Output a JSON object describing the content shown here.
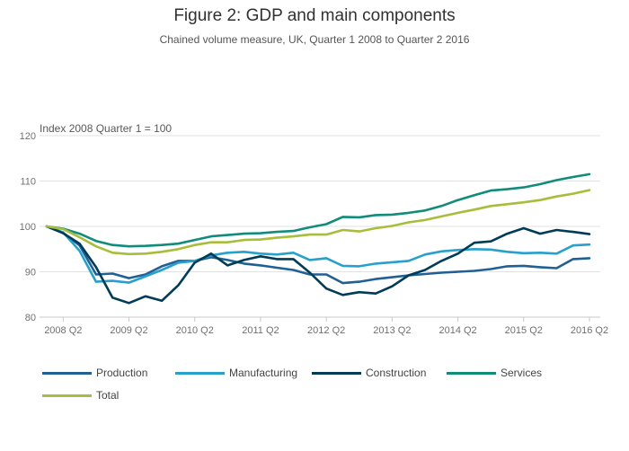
{
  "title": "Figure 2: GDP and main components",
  "subtitle": "Chained volume measure, UK, Quarter 1 2008 to Quarter 2 2016",
  "chart_data": {
    "type": "line",
    "title": "Figure 2: GDP and main components",
    "subtitle": "Chained volume measure, UK, Quarter 1 2008 to Quarter 2 2016",
    "ylabel": "Index 2008 Quarter 1 = 100",
    "xlabel": "",
    "ylim": [
      80,
      120
    ],
    "yticks": [
      80,
      90,
      100,
      110,
      120
    ],
    "x": [
      "2008 Q1",
      "2008 Q2",
      "2008 Q3",
      "2008 Q4",
      "2009 Q1",
      "2009 Q2",
      "2009 Q3",
      "2009 Q4",
      "2010 Q1",
      "2010 Q2",
      "2010 Q3",
      "2010 Q4",
      "2011 Q1",
      "2011 Q2",
      "2011 Q3",
      "2011 Q4",
      "2012 Q1",
      "2012 Q2",
      "2012 Q3",
      "2012 Q4",
      "2013 Q1",
      "2013 Q2",
      "2013 Q3",
      "2013 Q4",
      "2014 Q1",
      "2014 Q2",
      "2014 Q3",
      "2014 Q4",
      "2015 Q1",
      "2015 Q2",
      "2015 Q3",
      "2015 Q4",
      "2016 Q1",
      "2016 Q2"
    ],
    "xtick_labels": [
      "2008 Q2",
      "2009 Q2",
      "2010 Q2",
      "2011 Q2",
      "2012 Q2",
      "2013 Q2",
      "2014 Q2",
      "2015 Q2",
      "2016 Q2"
    ],
    "grid": true,
    "legend_position": "bottom",
    "series": [
      {
        "name": "Production",
        "color": "#206095",
        "values": [
          100.0,
          98.6,
          95.8,
          89.4,
          89.6,
          88.6,
          89.4,
          91.2,
          92.4,
          92.4,
          93.2,
          92.6,
          91.8,
          91.4,
          90.9,
          90.4,
          89.4,
          89.4,
          87.5,
          87.8,
          88.4,
          88.8,
          89.2,
          89.5,
          89.8,
          90.0,
          90.2,
          90.6,
          91.2,
          91.3,
          91.0,
          90.8,
          92.8,
          93.0
        ]
      },
      {
        "name": "Manufacturing",
        "color": "#27a0cc",
        "values": [
          100.0,
          98.7,
          94.6,
          87.8,
          88.0,
          87.6,
          89.0,
          90.4,
          92.0,
          92.4,
          93.6,
          94.2,
          94.4,
          94.0,
          93.8,
          94.2,
          92.6,
          93.0,
          91.3,
          91.2,
          91.8,
          92.1,
          92.4,
          93.8,
          94.5,
          94.8,
          95.0,
          94.9,
          94.4,
          94.1,
          94.2,
          94.0,
          95.8,
          96.0
        ]
      },
      {
        "name": "Construction",
        "color": "#003c57",
        "values": [
          100.0,
          98.5,
          96.2,
          91.0,
          84.3,
          83.1,
          84.6,
          83.6,
          87.0,
          92.0,
          94.0,
          91.4,
          92.6,
          93.4,
          92.8,
          92.8,
          89.8,
          86.3,
          84.9,
          85.5,
          85.2,
          86.8,
          89.2,
          90.4,
          92.4,
          94.0,
          96.4,
          96.7,
          98.4,
          99.6,
          98.4,
          99.2,
          98.8,
          98.3
        ]
      },
      {
        "name": "Services",
        "color": "#118c7b",
        "values": [
          100.0,
          99.5,
          98.4,
          96.8,
          95.9,
          95.6,
          95.7,
          95.9,
          96.2,
          97.0,
          97.8,
          98.1,
          98.4,
          98.5,
          98.8,
          99.0,
          99.8,
          100.5,
          102.1,
          102.0,
          102.5,
          102.6,
          103.0,
          103.5,
          104.5,
          105.8,
          106.9,
          107.9,
          108.2,
          108.6,
          109.3,
          110.2,
          110.9,
          111.5
        ]
      },
      {
        "name": "Total",
        "color": "#a8bd3a",
        "values": [
          100.0,
          99.4,
          97.6,
          95.6,
          94.2,
          93.9,
          94.0,
          94.4,
          95.0,
          95.9,
          96.5,
          96.5,
          97.0,
          97.1,
          97.5,
          97.8,
          98.2,
          98.2,
          99.2,
          98.9,
          99.6,
          100.1,
          100.9,
          101.4,
          102.2,
          103.0,
          103.7,
          104.5,
          104.9,
          105.3,
          105.8,
          106.6,
          107.2,
          108.0
        ]
      }
    ]
  }
}
